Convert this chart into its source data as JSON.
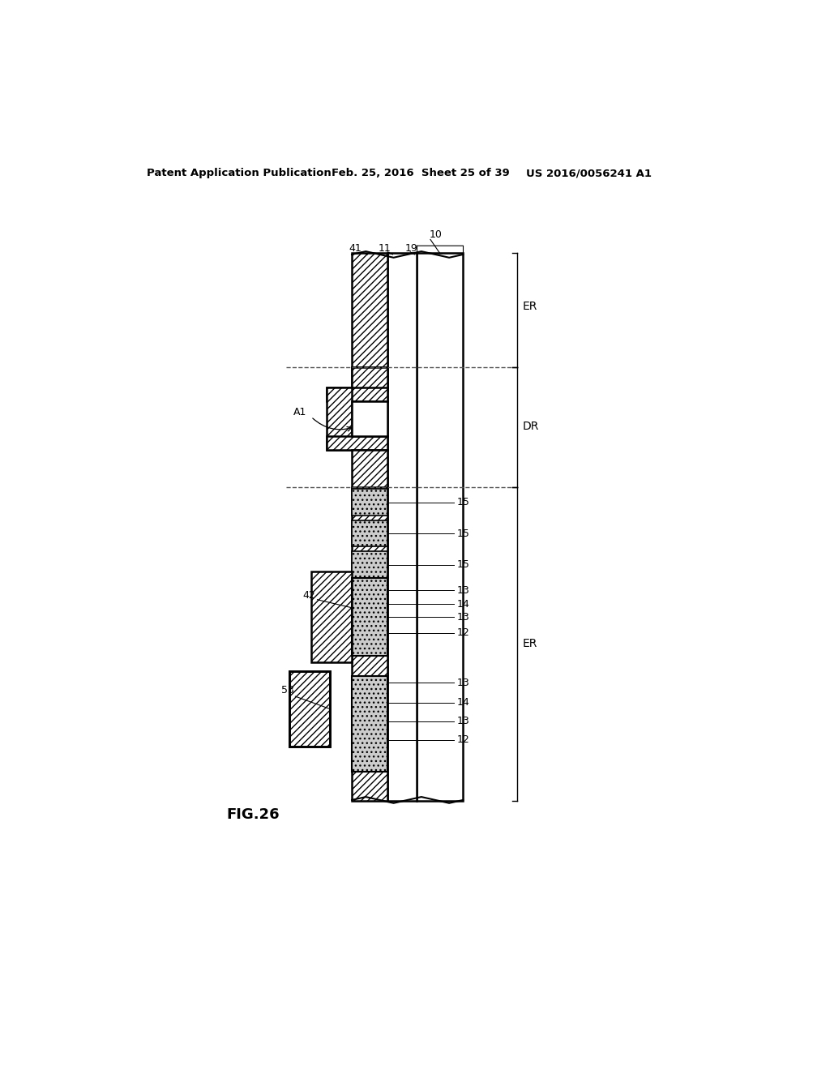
{
  "header_left": "Patent Application Publication",
  "header_mid": "Feb. 25, 2016  Sheet 25 of 39",
  "header_right": "US 2016/0056241 A1",
  "fig_label": "FIG.26",
  "bg_color": "#ffffff"
}
